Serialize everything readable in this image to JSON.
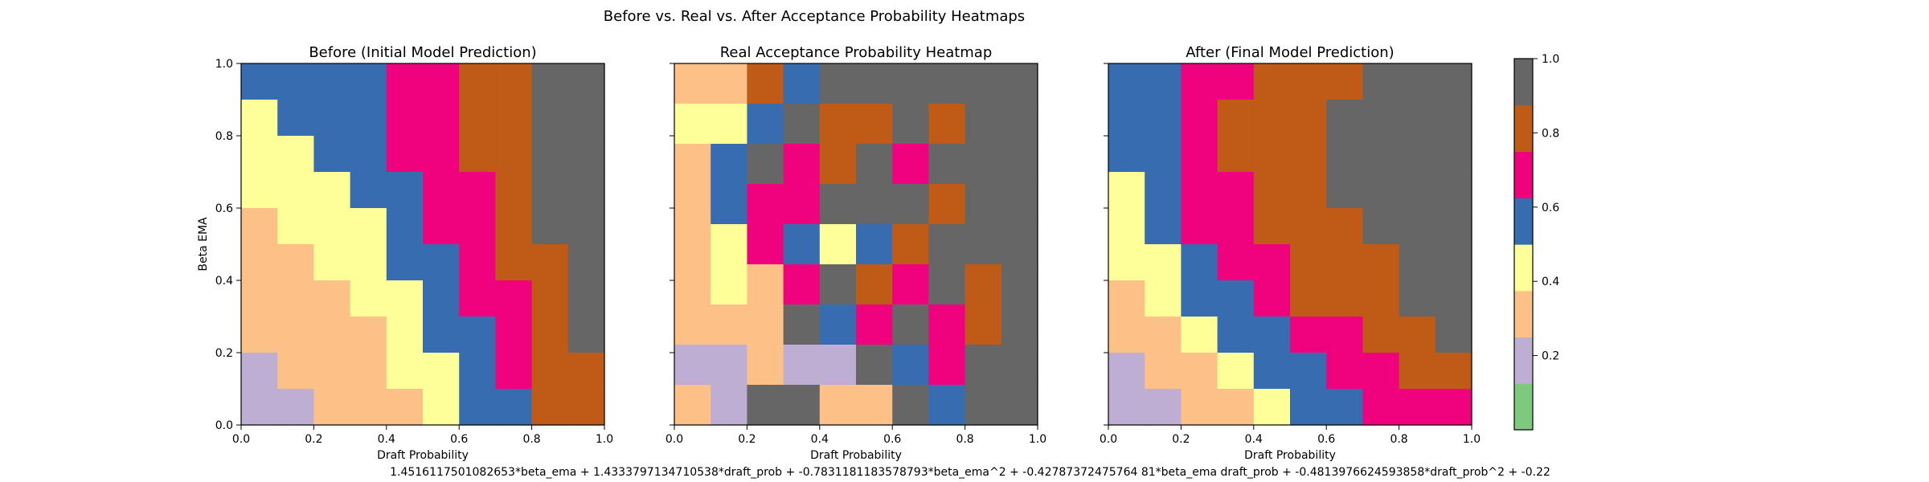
{
  "figure": {
    "suptitle": "Before vs. Real vs. After Acceptance Probability Heatmaps",
    "formula": "1.4516117501082653*beta_ema + 1.4333797134710538*draft_prob + -0.7831181183578793*beta_ema^2 + -0.42787372475764 81*beta_ema draft_prob + -0.4813976624593858*draft_prob^2 + -0.22"
  },
  "chart_data": [
    {
      "type": "heatmap",
      "title": "Before (Initial Model Prediction)",
      "xlabel": "Draft Probability",
      "ylabel": "Beta EMA",
      "xlim": [
        0,
        1
      ],
      "ylim": [
        0,
        1
      ],
      "xticks": [
        "0.0",
        "0.2",
        "0.4",
        "0.6",
        "0.8",
        "1.0"
      ],
      "yticks": [
        "0.0",
        "0.2",
        "0.4",
        "0.6",
        "0.8",
        "1.0"
      ],
      "grid_rows_top_to_bottom": [
        [
          0.55,
          0.55,
          0.55,
          0.55,
          0.65,
          0.65,
          0.75,
          0.75,
          0.95,
          0.95
        ],
        [
          0.45,
          0.55,
          0.55,
          0.55,
          0.65,
          0.65,
          0.75,
          0.75,
          0.95,
          0.95
        ],
        [
          0.45,
          0.45,
          0.55,
          0.55,
          0.65,
          0.65,
          0.75,
          0.75,
          0.95,
          0.95
        ],
        [
          0.45,
          0.45,
          0.45,
          0.55,
          0.55,
          0.65,
          0.65,
          0.75,
          0.95,
          0.95
        ],
        [
          0.35,
          0.45,
          0.45,
          0.45,
          0.55,
          0.65,
          0.65,
          0.75,
          0.95,
          0.95
        ],
        [
          0.35,
          0.35,
          0.45,
          0.45,
          0.55,
          0.55,
          0.65,
          0.75,
          0.85,
          0.95
        ],
        [
          0.25,
          0.35,
          0.35,
          0.45,
          0.45,
          0.55,
          0.65,
          0.65,
          0.85,
          0.95
        ],
        [
          0.25,
          0.25,
          0.35,
          0.35,
          0.45,
          0.55,
          0.55,
          0.65,
          0.85,
          0.95
        ],
        [
          0.15,
          0.25,
          0.25,
          0.35,
          0.45,
          0.45,
          0.55,
          0.65,
          0.85,
          0.85
        ],
        [
          0.15,
          0.15,
          0.25,
          0.25,
          0.35,
          0.45,
          0.55,
          0.55,
          0.75,
          0.85
        ]
      ]
    },
    {
      "type": "heatmap",
      "title": "Real Acceptance Probability Heatmap",
      "xlabel": "Draft Probability",
      "ylabel": "",
      "xlim": [
        0,
        1
      ],
      "ylim": [
        0,
        1
      ],
      "xticks": [
        "0.0",
        "0.2",
        "0.4",
        "0.6",
        "0.8",
        "1.0"
      ],
      "yticks": [],
      "grid_rows_top_to_bottom": [
        [
          0.35,
          0.35,
          0.85,
          0.55,
          0.95,
          0.95,
          0.95,
          0.95,
          0.95,
          0.95
        ],
        [
          0.45,
          0.45,
          0.55,
          0.95,
          0.85,
          0.85,
          0.95,
          0.85,
          0.95,
          0.95
        ],
        [
          0.35,
          0.55,
          0.95,
          0.65,
          0.85,
          0.95,
          0.65,
          0.95,
          0.95,
          0.95
        ],
        [
          0.35,
          0.55,
          0.65,
          0.65,
          0.95,
          0.95,
          0.95,
          0.85,
          0.95,
          0.95
        ],
        [
          0.35,
          0.45,
          0.65,
          0.55,
          0.45,
          0.55,
          0.85,
          0.95,
          0.95,
          0.95
        ],
        [
          0.25,
          0.45,
          0.25,
          0.65,
          0.95,
          0.85,
          0.65,
          0.95,
          0.85,
          0.95
        ],
        [
          0.25,
          0.35,
          0.35,
          0.95,
          0.55,
          0.65,
          0.95,
          0.65,
          0.85,
          0.95
        ],
        [
          0.15,
          0.15,
          0.35,
          0.15,
          0.15,
          0.95,
          0.55,
          0.65,
          0.95,
          0.95
        ],
        [
          0.25,
          0.15,
          1.0,
          1.0,
          0.35,
          0.35,
          1.0,
          0.55,
          1.0,
          0.95
        ]
      ]
    },
    {
      "type": "heatmap",
      "title": "After (Final Model Prediction)",
      "xlabel": "Draft Probability",
      "ylabel": "",
      "xlim": [
        0,
        1
      ],
      "ylim": [
        0,
        1
      ],
      "xticks": [
        "0.0",
        "0.2",
        "0.4",
        "0.6",
        "0.8",
        "1.0"
      ],
      "yticks": [],
      "grid_rows_top_to_bottom": [
        [
          0.55,
          0.55,
          0.65,
          0.65,
          0.75,
          0.75,
          0.75,
          0.95,
          0.95,
          0.95
        ],
        [
          0.55,
          0.55,
          0.65,
          0.75,
          0.75,
          0.75,
          0.95,
          0.95,
          0.95,
          0.95
        ],
        [
          0.55,
          0.55,
          0.65,
          0.75,
          0.75,
          0.75,
          0.95,
          0.95,
          0.95,
          0.95
        ],
        [
          0.45,
          0.55,
          0.65,
          0.65,
          0.75,
          0.75,
          0.95,
          0.95,
          0.95,
          0.95
        ],
        [
          0.45,
          0.55,
          0.65,
          0.65,
          0.75,
          0.75,
          0.75,
          0.95,
          0.95,
          0.95
        ],
        [
          0.45,
          0.45,
          0.55,
          0.65,
          0.65,
          0.75,
          0.75,
          0.75,
          0.95,
          0.95
        ],
        [
          0.35,
          0.45,
          0.55,
          0.55,
          0.65,
          0.75,
          0.75,
          0.75,
          0.95,
          0.95
        ],
        [
          0.25,
          0.35,
          0.45,
          0.55,
          0.55,
          0.65,
          0.65,
          0.75,
          0.75,
          0.95
        ],
        [
          0.15,
          0.25,
          0.35,
          0.45,
          0.55,
          0.55,
          0.65,
          0.65,
          0.75,
          0.75
        ],
        [
          0.15,
          0.15,
          0.25,
          0.35,
          0.45,
          0.55,
          0.55,
          0.65,
          0.65,
          0.65
        ]
      ]
    }
  ],
  "colorbar": {
    "ticks": [
      "0.2",
      "0.4",
      "0.6",
      "0.8",
      "1.0"
    ],
    "range": [
      0,
      1
    ],
    "bins": [
      {
        "min": 0.0,
        "max": 0.125,
        "color": "#7fc97f"
      },
      {
        "min": 0.125,
        "max": 0.25,
        "color": "#beaed4"
      },
      {
        "min": 0.25,
        "max": 0.375,
        "color": "#fdc086"
      },
      {
        "min": 0.375,
        "max": 0.5,
        "color": "#ffff99"
      },
      {
        "min": 0.5,
        "max": 0.625,
        "color": "#386cb0"
      },
      {
        "min": 0.625,
        "max": 0.75,
        "color": "#f0027f"
      },
      {
        "min": 0.75,
        "max": 0.875,
        "color": "#bf5b17"
      },
      {
        "min": 0.875,
        "max": 1.0,
        "color": "#666666"
      }
    ],
    "out_of_range_color": "#ffffff"
  }
}
